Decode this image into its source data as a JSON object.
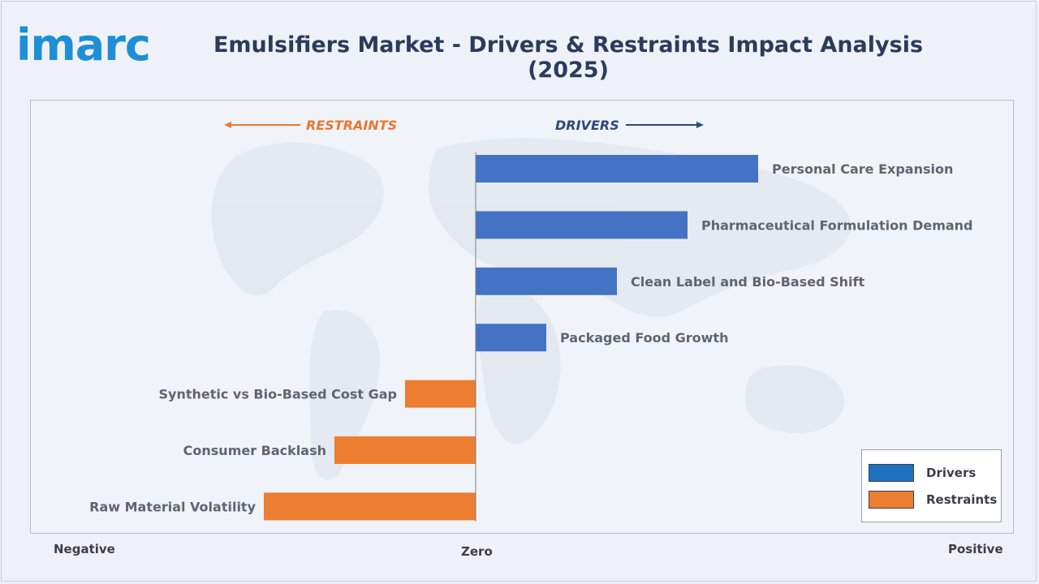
{
  "header": {
    "logo_text": "imarc",
    "title": "Emulsifiers Market - Drivers & Restraints Impact Analysis (2025)"
  },
  "direction_labels": {
    "restraints": "RESTRAINTS",
    "drivers": "DRIVERS"
  },
  "axis_labels": {
    "negative": "Negative",
    "zero": "Zero",
    "positive": "Positive"
  },
  "legend": {
    "drivers": "Drivers",
    "restraints": "Restraints"
  },
  "colors": {
    "drivers": "#4472c4",
    "restraints": "#ed7d31",
    "restraints_text": "#e8782f",
    "drivers_text": "#2b4a78",
    "legend_drivers": "#1f72c0"
  },
  "chart_data": {
    "type": "bar",
    "orientation": "horizontal",
    "title": "Emulsifiers Market - Drivers & Restraints Impact Analysis (2025)",
    "xlim": [
      -5.5,
      6.5
    ],
    "grid": false,
    "legend_position": "bottom-right",
    "categories": [
      "Personal Care Expansion",
      "Pharmaceutical Formulation Demand",
      "Clean Label and Bio-Based Shift",
      "Packaged Food Growth",
      "Synthetic vs Bio-Based Cost Gap",
      "Consumer Backlash",
      "Raw Material Volatility"
    ],
    "series": [
      {
        "name": "Drivers",
        "values": [
          4,
          3,
          2,
          1,
          null,
          null,
          null
        ]
      },
      {
        "name": "Restraints",
        "values": [
          null,
          null,
          null,
          null,
          -1,
          -2,
          -3
        ]
      }
    ]
  }
}
